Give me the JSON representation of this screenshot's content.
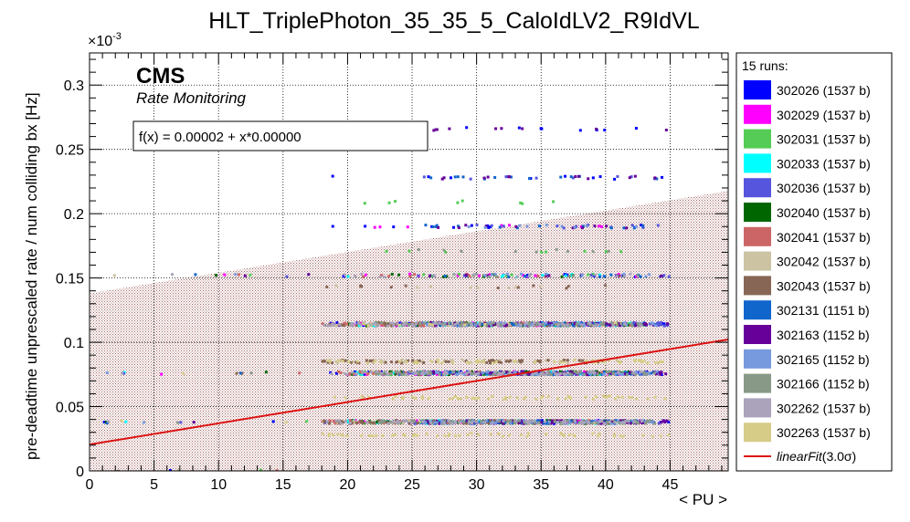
{
  "chart_data": {
    "type": "scatter",
    "title": "HLT_TriplePhoton_35_35_5_CaloIdLV2_R9IdVL",
    "xlabel": "< PU >",
    "ylabel": "pre-deadtime unprescaled rate / num colliding bx [Hz]",
    "y_exponent_label": "×10",
    "y_exponent_power": "-3",
    "xlim": [
      0,
      49.5
    ],
    "ylim": [
      0,
      0.325
    ],
    "x_ticks": [
      0,
      5,
      10,
      15,
      20,
      25,
      30,
      35,
      40,
      45
    ],
    "x_tick_labels": [
      "0",
      "5",
      "10",
      "15",
      "20",
      "25",
      "30",
      "35",
      "40",
      "45"
    ],
    "y_ticks": [
      0,
      0.05,
      0.1,
      0.15,
      0.2,
      0.25,
      0.3
    ],
    "y_tick_labels": [
      "0",
      "0.05",
      "0.1",
      "0.15",
      "0.2",
      "0.25",
      "0.3"
    ],
    "grid": true,
    "cms_label": "CMS",
    "cms_sublabel": "Rate Monitoring",
    "fit_text": "f(x) = 0.00002 + x*0.00000",
    "fit": {
      "name": "linearFit",
      "color": "#dd1111",
      "intercept": 0.0205,
      "slope": 0.00165
    },
    "band": {
      "lower": 0,
      "upper_intercept": 0.138,
      "upper_slope": 0.00161,
      "color": "#c48e8e"
    },
    "legend_header": "15 runs:",
    "legend_position": "right",
    "series": [
      {
        "name": "302026 (1537 b)",
        "color": "#0000ff",
        "levels": [
          0.038,
          0.076,
          0.114,
          0.152,
          0.19,
          0.228,
          0.266
        ],
        "xrange": [
          18,
          45
        ]
      },
      {
        "name": "302029 (1537 b)",
        "color": "#ff00ff",
        "levels": [
          0.038,
          0.076,
          0.114,
          0.152,
          0.19
        ],
        "xrange": [
          20,
          43
        ]
      },
      {
        "name": "302031 (1537 b)",
        "color": "#55cc55",
        "levels": [
          0.038,
          0.076,
          0.114,
          0.152,
          0.171,
          0.209
        ],
        "xrange": [
          20,
          43
        ]
      },
      {
        "name": "302033 (1537 b)",
        "color": "#00ffff",
        "levels": [
          0.038,
          0.076,
          0.114,
          0.152
        ],
        "xrange": [
          20,
          42
        ]
      },
      {
        "name": "302036 (1537 b)",
        "color": "#5555dd",
        "levels": [
          0.038,
          0.076,
          0.114,
          0.152,
          0.19,
          0.228
        ],
        "xrange": [
          24,
          45
        ]
      },
      {
        "name": "302040 (1537 b)",
        "color": "#006600",
        "levels": [
          0.038,
          0.076,
          0.114,
          0.152
        ],
        "xrange": [
          20,
          42
        ]
      },
      {
        "name": "302041 (1537 b)",
        "color": "#cc6666",
        "levels": [
          0.038,
          0.076,
          0.114,
          0.152
        ],
        "xrange": [
          18,
          42
        ]
      },
      {
        "name": "302042 (1537 b)",
        "color": "#ccc3a3",
        "levels": [
          0.038,
          0.085,
          0.114,
          0.143
        ],
        "xrange": [
          18,
          41
        ]
      },
      {
        "name": "302043 (1537 b)",
        "color": "#886655",
        "levels": [
          0.038,
          0.085,
          0.114,
          0.143
        ],
        "xrange": [
          18,
          40
        ]
      },
      {
        "name": "302131 (1151 b)",
        "color": "#1166cc",
        "levels": [
          0.038,
          0.076,
          0.114,
          0.152,
          0.19,
          0.228
        ],
        "xrange": [
          26,
          44
        ]
      },
      {
        "name": "302163 (1152 b)",
        "color": "#660099",
        "levels": [
          0.038,
          0.076,
          0.114,
          0.152,
          0.19,
          0.228,
          0.266
        ],
        "xrange": [
          26,
          45
        ]
      },
      {
        "name": "302165 (1152 b)",
        "color": "#7799dd",
        "levels": [
          0.038,
          0.076,
          0.114,
          0.152,
          0.19
        ],
        "xrange": [
          25,
          44
        ]
      },
      {
        "name": "302166 (1152 b)",
        "color": "#889988",
        "levels": [
          0.038,
          0.076,
          0.114,
          0.152,
          0.171
        ],
        "xrange": [
          22,
          44
        ]
      },
      {
        "name": "302262 (1537 b)",
        "color": "#aaa3bb",
        "levels": [
          0.038,
          0.076,
          0.114,
          0.152
        ],
        "xrange": [
          18,
          43
        ]
      },
      {
        "name": "302263 (1537 b)",
        "color": "#d6cc88",
        "levels": [
          0.028,
          0.057,
          0.085,
          0.114
        ],
        "xrange": [
          18,
          45
        ]
      }
    ],
    "legend_fit_label": "linearFit",
    "legend_fit_suffix": "(3.0σ)"
  }
}
